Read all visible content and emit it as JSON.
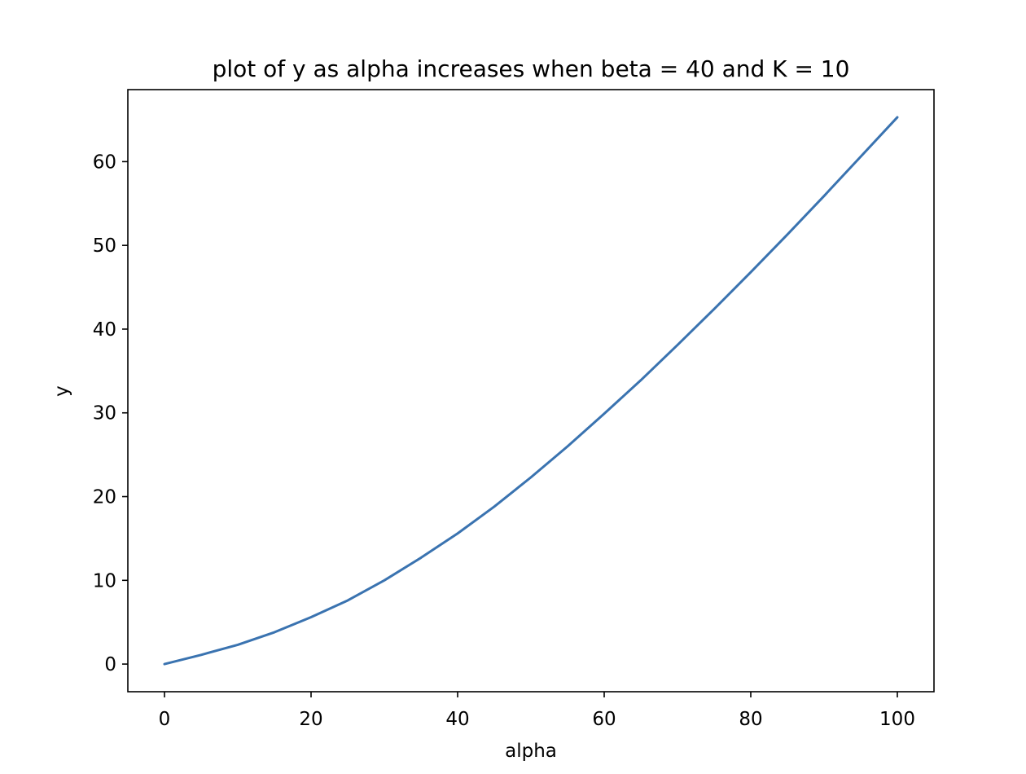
{
  "chart_data": {
    "type": "line",
    "title": "plot of y as alpha increases when beta = 40 and K = 10",
    "xlabel": "alpha",
    "ylabel": "y",
    "xlim": [
      -5,
      105
    ],
    "ylim": [
      -3.3,
      68.6
    ],
    "xticks": [
      0,
      20,
      40,
      60,
      80,
      100
    ],
    "yticks": [
      0,
      10,
      20,
      30,
      40,
      50,
      60
    ],
    "grid": false,
    "series": [
      {
        "color": "#3a73b0",
        "x": [
          0,
          5,
          10,
          15,
          20,
          25,
          30,
          35,
          40,
          45,
          50,
          55,
          60,
          65,
          70,
          75,
          80,
          85,
          90,
          95,
          100
        ],
        "y": [
          0,
          1.1,
          2.3,
          3.8,
          5.6,
          7.6,
          10.0,
          12.7,
          15.6,
          18.8,
          22.3,
          26.0,
          29.9,
          33.9,
          38.1,
          42.4,
          46.8,
          51.3,
          55.9,
          60.6,
          65.3
        ]
      }
    ]
  }
}
